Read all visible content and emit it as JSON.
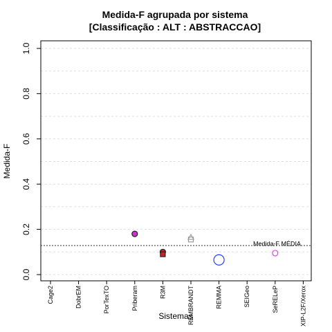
{
  "chart_data": {
    "type": "scatter",
    "title": "Medida-F agrupada por sistema",
    "subtitle": "[Classificação : ALT : ABSTRACCAO]",
    "xlabel": "Sistemas",
    "ylabel": "Medida-F",
    "categories": [
      "Cage2",
      "DobrEM",
      "PorTexTO",
      "Priberam",
      "R3M",
      "REMBRANDT",
      "REMMA",
      "SEIGeo",
      "SeRELeP",
      "XIP-L2F/Xerox"
    ],
    "ylim": [
      0,
      1
    ],
    "yticks": [
      "0.0",
      "0.2",
      "0.4",
      "0.6",
      "0.8",
      "1.0"
    ],
    "grid": true,
    "points": [
      {
        "category": "Priberam",
        "y": 0.18,
        "shape": "circle",
        "color": "#cc33cc",
        "filled": true
      },
      {
        "category": "R3M",
        "y": 0.1,
        "shape": "circle",
        "color": "#cc2222",
        "filled": true
      },
      {
        "category": "R3M",
        "y": 0.09,
        "shape": "square",
        "color": "#cc2222",
        "filled": true
      },
      {
        "category": "REMBRANDT",
        "y": 0.165,
        "shape": "triangle",
        "color": "#999999",
        "filled": false
      },
      {
        "category": "REMBRANDT",
        "y": 0.155,
        "shape": "square",
        "color": "#999999",
        "filled": false
      },
      {
        "category": "REMMA",
        "y": 0.065,
        "shape": "circle",
        "color": "#1f3fff",
        "filled": false
      },
      {
        "category": "SeRELeP",
        "y": 0.095,
        "shape": "circle",
        "color": "#dd44ee",
        "filled": false
      }
    ],
    "reference_line": {
      "label": "Medida-F MÉDIA",
      "y": 0.117
    }
  }
}
